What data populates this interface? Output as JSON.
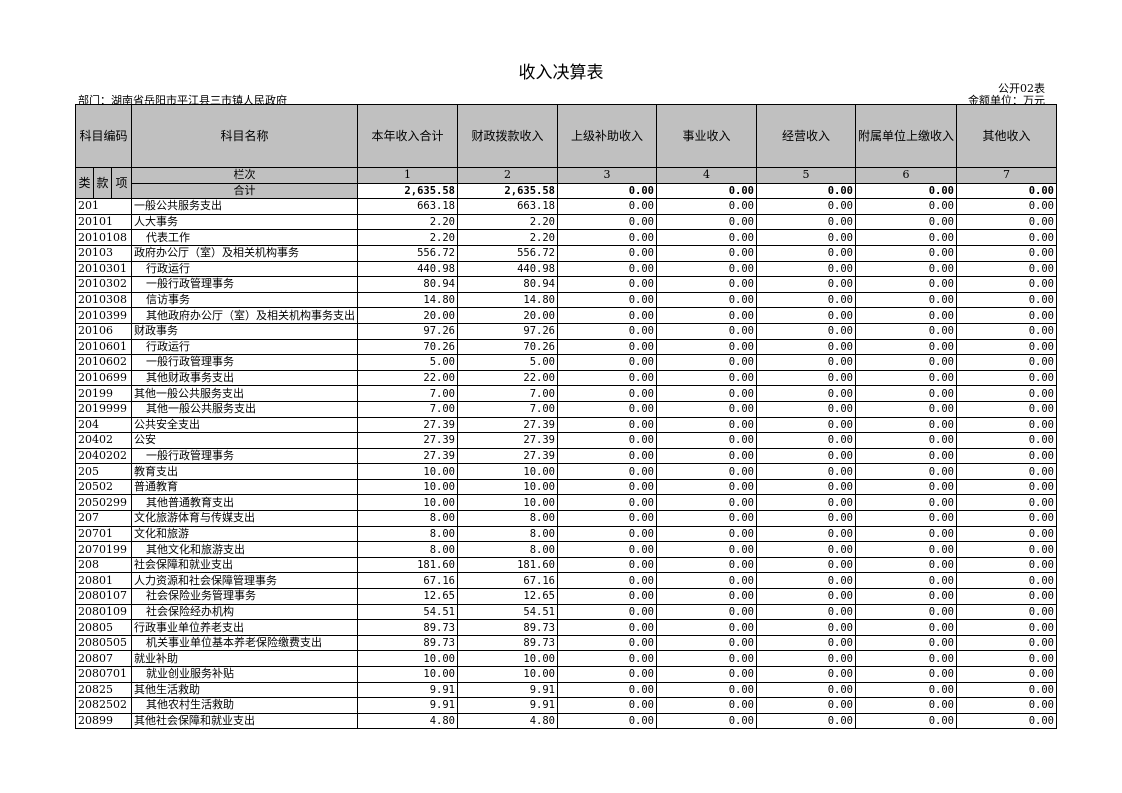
{
  "title": "收入决算表",
  "form_no": "公开02表",
  "department": "部门：湖南省岳阳市平江县三市镇人民政府",
  "unit": "金额单位：万元",
  "headers": {
    "code": "科目编码",
    "name": "科目名称",
    "cols": [
      "本年收入合计",
      "财政拨款收入",
      "上级补助收入",
      "事业收入",
      "经营收入",
      "附属单位上缴收入",
      "其他收入"
    ],
    "lei": "类",
    "kuan": "款",
    "xiang": "项",
    "lanci": "栏次",
    "col_numbers": [
      "1",
      "2",
      "3",
      "4",
      "5",
      "6",
      "7"
    ],
    "total_label": "合计"
  },
  "total": [
    "2,635.58",
    "2,635.58",
    "0.00",
    "0.00",
    "0.00",
    "0.00",
    "0.00"
  ],
  "rows": [
    {
      "code": "201",
      "name": "一般公共服务支出",
      "v": [
        "663.18",
        "663.18",
        "0.00",
        "0.00",
        "0.00",
        "0.00",
        "0.00"
      ]
    },
    {
      "code": "20101",
      "name": "人大事务",
      "v": [
        "2.20",
        "2.20",
        "0.00",
        "0.00",
        "0.00",
        "0.00",
        "0.00"
      ]
    },
    {
      "code": "2010108",
      "name": "代表工作",
      "v": [
        "2.20",
        "2.20",
        "0.00",
        "0.00",
        "0.00",
        "0.00",
        "0.00"
      ]
    },
    {
      "code": "20103",
      "name": "政府办公厅（室）及相关机构事务",
      "v": [
        "556.72",
        "556.72",
        "0.00",
        "0.00",
        "0.00",
        "0.00",
        "0.00"
      ]
    },
    {
      "code": "2010301",
      "name": "行政运行",
      "v": [
        "440.98",
        "440.98",
        "0.00",
        "0.00",
        "0.00",
        "0.00",
        "0.00"
      ]
    },
    {
      "code": "2010302",
      "name": "一般行政管理事务",
      "v": [
        "80.94",
        "80.94",
        "0.00",
        "0.00",
        "0.00",
        "0.00",
        "0.00"
      ]
    },
    {
      "code": "2010308",
      "name": "信访事务",
      "v": [
        "14.80",
        "14.80",
        "0.00",
        "0.00",
        "0.00",
        "0.00",
        "0.00"
      ]
    },
    {
      "code": "2010399",
      "name": "其他政府办公厅（室）及相关机构事务支出",
      "v": [
        "20.00",
        "20.00",
        "0.00",
        "0.00",
        "0.00",
        "0.00",
        "0.00"
      ]
    },
    {
      "code": "20106",
      "name": "财政事务",
      "v": [
        "97.26",
        "97.26",
        "0.00",
        "0.00",
        "0.00",
        "0.00",
        "0.00"
      ]
    },
    {
      "code": "2010601",
      "name": "行政运行",
      "v": [
        "70.26",
        "70.26",
        "0.00",
        "0.00",
        "0.00",
        "0.00",
        "0.00"
      ]
    },
    {
      "code": "2010602",
      "name": "一般行政管理事务",
      "v": [
        "5.00",
        "5.00",
        "0.00",
        "0.00",
        "0.00",
        "0.00",
        "0.00"
      ]
    },
    {
      "code": "2010699",
      "name": "其他财政事务支出",
      "v": [
        "22.00",
        "22.00",
        "0.00",
        "0.00",
        "0.00",
        "0.00",
        "0.00"
      ]
    },
    {
      "code": "20199",
      "name": "其他一般公共服务支出",
      "v": [
        "7.00",
        "7.00",
        "0.00",
        "0.00",
        "0.00",
        "0.00",
        "0.00"
      ]
    },
    {
      "code": "2019999",
      "name": "其他一般公共服务支出",
      "v": [
        "7.00",
        "7.00",
        "0.00",
        "0.00",
        "0.00",
        "0.00",
        "0.00"
      ]
    },
    {
      "code": "204",
      "name": "公共安全支出",
      "v": [
        "27.39",
        "27.39",
        "0.00",
        "0.00",
        "0.00",
        "0.00",
        "0.00"
      ]
    },
    {
      "code": "20402",
      "name": "公安",
      "v": [
        "27.39",
        "27.39",
        "0.00",
        "0.00",
        "0.00",
        "0.00",
        "0.00"
      ]
    },
    {
      "code": "2040202",
      "name": "一般行政管理事务",
      "v": [
        "27.39",
        "27.39",
        "0.00",
        "0.00",
        "0.00",
        "0.00",
        "0.00"
      ]
    },
    {
      "code": "205",
      "name": "教育支出",
      "v": [
        "10.00",
        "10.00",
        "0.00",
        "0.00",
        "0.00",
        "0.00",
        "0.00"
      ]
    },
    {
      "code": "20502",
      "name": "普通教育",
      "v": [
        "10.00",
        "10.00",
        "0.00",
        "0.00",
        "0.00",
        "0.00",
        "0.00"
      ]
    },
    {
      "code": "2050299",
      "name": "其他普通教育支出",
      "v": [
        "10.00",
        "10.00",
        "0.00",
        "0.00",
        "0.00",
        "0.00",
        "0.00"
      ]
    },
    {
      "code": "207",
      "name": "文化旅游体育与传媒支出",
      "v": [
        "8.00",
        "8.00",
        "0.00",
        "0.00",
        "0.00",
        "0.00",
        "0.00"
      ]
    },
    {
      "code": "20701",
      "name": "文化和旅游",
      "v": [
        "8.00",
        "8.00",
        "0.00",
        "0.00",
        "0.00",
        "0.00",
        "0.00"
      ]
    },
    {
      "code": "2070199",
      "name": "其他文化和旅游支出",
      "v": [
        "8.00",
        "8.00",
        "0.00",
        "0.00",
        "0.00",
        "0.00",
        "0.00"
      ]
    },
    {
      "code": "208",
      "name": "社会保障和就业支出",
      "v": [
        "181.60",
        "181.60",
        "0.00",
        "0.00",
        "0.00",
        "0.00",
        "0.00"
      ]
    },
    {
      "code": "20801",
      "name": "人力资源和社会保障管理事务",
      "v": [
        "67.16",
        "67.16",
        "0.00",
        "0.00",
        "0.00",
        "0.00",
        "0.00"
      ]
    },
    {
      "code": "2080107",
      "name": "社会保险业务管理事务",
      "v": [
        "12.65",
        "12.65",
        "0.00",
        "0.00",
        "0.00",
        "0.00",
        "0.00"
      ]
    },
    {
      "code": "2080109",
      "name": "社会保险经办机构",
      "v": [
        "54.51",
        "54.51",
        "0.00",
        "0.00",
        "0.00",
        "0.00",
        "0.00"
      ]
    },
    {
      "code": "20805",
      "name": "行政事业单位养老支出",
      "v": [
        "89.73",
        "89.73",
        "0.00",
        "0.00",
        "0.00",
        "0.00",
        "0.00"
      ]
    },
    {
      "code": "2080505",
      "name": "机关事业单位基本养老保险缴费支出",
      "v": [
        "89.73",
        "89.73",
        "0.00",
        "0.00",
        "0.00",
        "0.00",
        "0.00"
      ]
    },
    {
      "code": "20807",
      "name": "就业补助",
      "v": [
        "10.00",
        "10.00",
        "0.00",
        "0.00",
        "0.00",
        "0.00",
        "0.00"
      ]
    },
    {
      "code": "2080701",
      "name": "就业创业服务补贴",
      "v": [
        "10.00",
        "10.00",
        "0.00",
        "0.00",
        "0.00",
        "0.00",
        "0.00"
      ]
    },
    {
      "code": "20825",
      "name": "其他生活救助",
      "v": [
        "9.91",
        "9.91",
        "0.00",
        "0.00",
        "0.00",
        "0.00",
        "0.00"
      ]
    },
    {
      "code": "2082502",
      "name": "其他农村生活救助",
      "v": [
        "9.91",
        "9.91",
        "0.00",
        "0.00",
        "0.00",
        "0.00",
        "0.00"
      ]
    },
    {
      "code": "20899",
      "name": "其他社会保障和就业支出",
      "v": [
        "4.80",
        "4.80",
        "0.00",
        "0.00",
        "0.00",
        "0.00",
        "0.00"
      ]
    }
  ]
}
